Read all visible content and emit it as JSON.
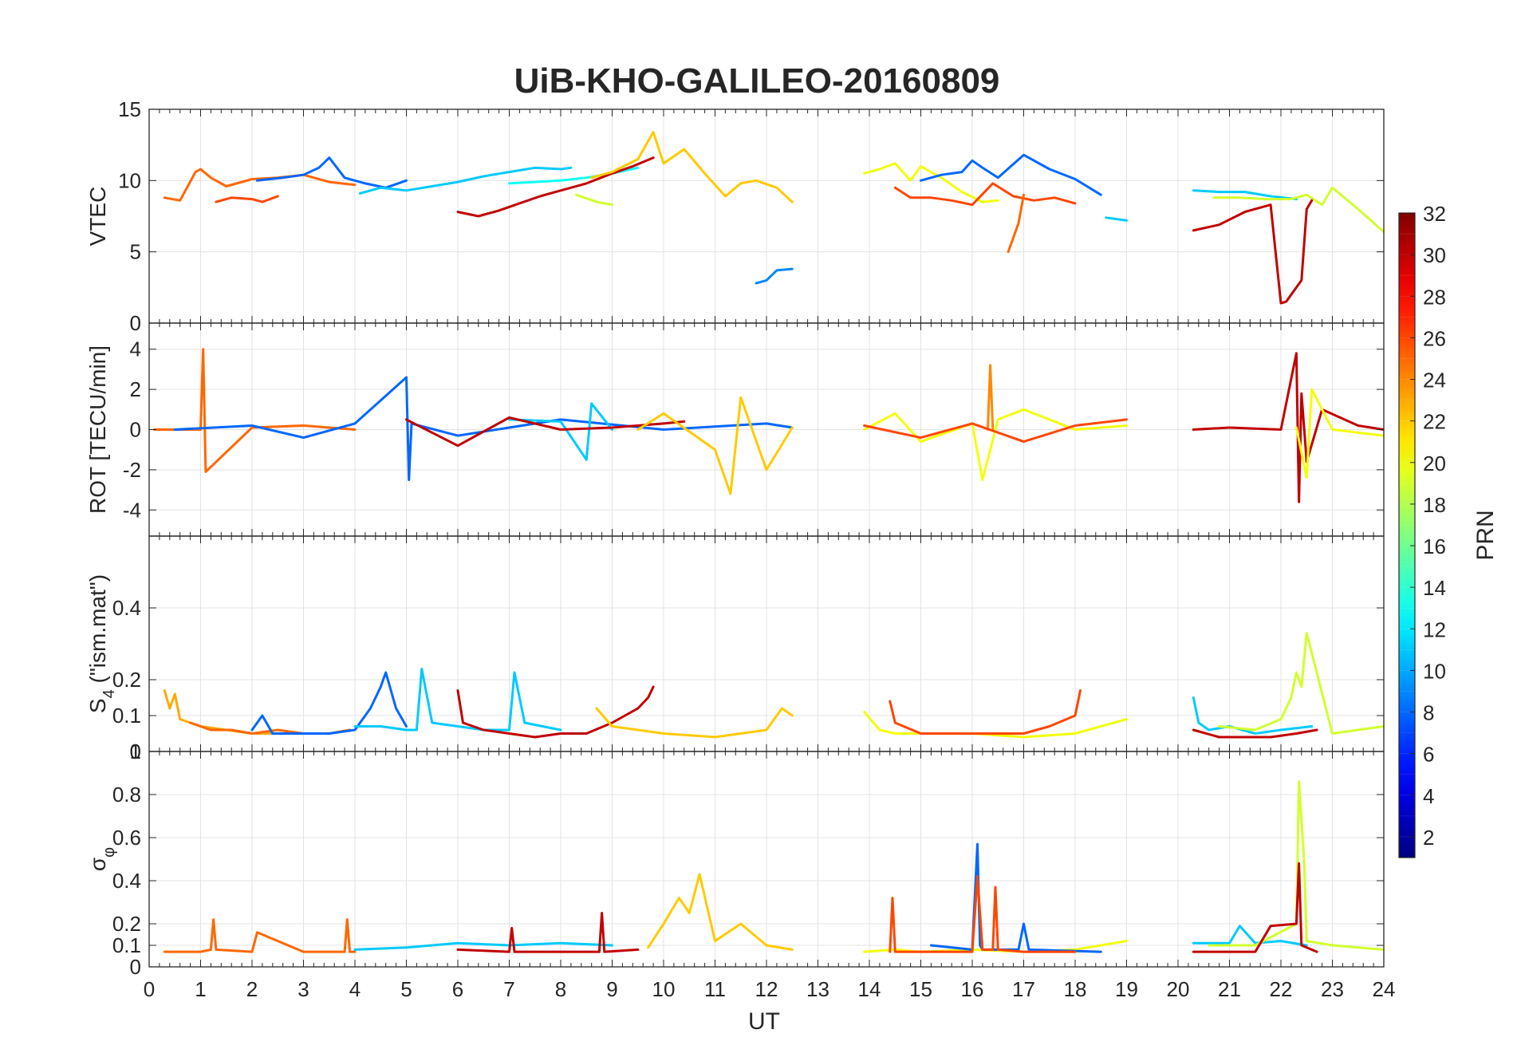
{
  "title": "UiB-KHO-GALILEO-20160809",
  "xlabel": "UT",
  "colorbar": {
    "label": "PRN",
    "ticks": [
      "2",
      "4",
      "6",
      "8",
      "10",
      "12",
      "14",
      "16",
      "18",
      "20",
      "22",
      "24",
      "26",
      "28",
      "30",
      "32"
    ],
    "range": [
      1,
      32
    ],
    "colormap": "jet"
  },
  "chart_data": [
    {
      "type": "line",
      "panel": "VTEC",
      "ylabel": "VTEC",
      "xlim": [
        0,
        24
      ],
      "ylim": [
        0,
        15
      ],
      "yticks": [
        "0",
        "5",
        "10",
        "15"
      ],
      "grid": true,
      "series": [
        {
          "prn": 25,
          "x": [
            0.3,
            0.6,
            0.9,
            1.0,
            1.2,
            1.5,
            2.0,
            2.5,
            3.0,
            3.5,
            4.0
          ],
          "y": [
            8.8,
            8.6,
            10.6,
            10.8,
            10.2,
            9.6,
            10.1,
            10.2,
            10.4,
            9.9,
            9.7
          ]
        },
        {
          "prn": 26,
          "x": [
            1.3,
            1.6,
            2.0,
            2.2,
            2.5
          ],
          "y": [
            8.5,
            8.8,
            8.7,
            8.5,
            8.9
          ]
        },
        {
          "prn": 8,
          "x": [
            2.1,
            2.6,
            3.0,
            3.3,
            3.5,
            3.8,
            4.2,
            4.6,
            5.0
          ],
          "y": [
            10.0,
            10.2,
            10.4,
            10.9,
            11.6,
            10.2,
            9.8,
            9.5,
            10.0
          ]
        },
        {
          "prn": 11,
          "x": [
            4.1,
            4.5,
            5.0,
            5.5,
            6.0,
            6.5,
            7.0,
            7.5,
            8.0,
            8.2
          ],
          "y": [
            9.1,
            9.5,
            9.3,
            9.6,
            9.9,
            10.3,
            10.6,
            10.9,
            10.8,
            10.9
          ]
        },
        {
          "prn": 13,
          "x": [
            7.0,
            7.5,
            8.0,
            8.5,
            9.0,
            9.5
          ],
          "y": [
            9.8,
            9.9,
            10.0,
            10.2,
            10.5,
            10.9
          ]
        },
        {
          "prn": 19,
          "x": [
            8.3,
            8.7,
            9.0
          ],
          "y": [
            9.0,
            8.5,
            8.3
          ]
        },
        {
          "prn": 30,
          "x": [
            6.0,
            6.4,
            6.8,
            7.2,
            7.6,
            8.0,
            8.5,
            9.0,
            9.4,
            9.8
          ],
          "y": [
            7.8,
            7.5,
            7.9,
            8.4,
            8.9,
            9.3,
            9.8,
            10.5,
            11.0,
            11.6
          ]
        },
        {
          "prn": 22,
          "x": [
            8.6,
            9.0,
            9.5,
            9.8,
            10.0,
            10.4,
            10.8,
            11.2,
            11.5,
            11.8,
            12.2,
            12.5
          ],
          "y": [
            10.2,
            10.6,
            11.5,
            13.4,
            11.2,
            12.2,
            10.5,
            8.9,
            9.8,
            10.0,
            9.5,
            8.5
          ]
        },
        {
          "prn": 9,
          "x": [
            11.8,
            12.0,
            12.2,
            12.5
          ],
          "y": [
            2.8,
            3.0,
            3.7,
            3.8
          ]
        },
        {
          "prn": 20,
          "x": [
            13.9,
            14.2,
            14.5,
            14.8,
            15.0,
            15.4,
            15.8,
            16.2,
            16.5
          ],
          "y": [
            10.5,
            10.8,
            11.2,
            10.0,
            11.0,
            10.2,
            9.2,
            8.5,
            8.6
          ]
        },
        {
          "prn": 8,
          "x": [
            15.0,
            15.4,
            15.8,
            16.0,
            16.2,
            16.5,
            17.0,
            17.5,
            18.0,
            18.5
          ],
          "y": [
            10.0,
            10.4,
            10.6,
            11.4,
            10.9,
            10.2,
            11.8,
            10.8,
            10.1,
            9.0
          ]
        },
        {
          "prn": 26,
          "x": [
            14.5,
            14.8,
            15.2,
            15.6,
            16.0,
            16.4,
            16.8,
            17.2,
            17.6,
            18.0
          ],
          "y": [
            9.5,
            8.8,
            8.8,
            8.6,
            8.3,
            9.8,
            8.9,
            8.6,
            8.8,
            8.4
          ]
        },
        {
          "prn": 25,
          "x": [
            16.7,
            16.9,
            17.0
          ],
          "y": [
            5.0,
            7.0,
            9.0
          ]
        },
        {
          "prn": 11,
          "x": [
            18.6,
            19.0
          ],
          "y": [
            7.4,
            7.2
          ]
        },
        {
          "prn": 11,
          "x": [
            20.3,
            20.8,
            21.3,
            21.8,
            22.3
          ],
          "y": [
            9.3,
            9.2,
            9.2,
            8.9,
            8.7
          ]
        },
        {
          "prn": 19,
          "x": [
            20.7,
            21.2,
            21.7,
            22.2,
            22.5,
            22.8,
            23.0,
            23.5,
            24.0
          ],
          "y": [
            8.8,
            8.8,
            8.7,
            8.7,
            9.0,
            8.3,
            9.5,
            8.0,
            6.4
          ]
        },
        {
          "prn": 30,
          "x": [
            20.3,
            20.8,
            21.3,
            21.8,
            22.0,
            22.1,
            22.4,
            22.5,
            22.6
          ],
          "y": [
            6.5,
            6.9,
            7.8,
            8.3,
            1.4,
            1.5,
            3.0,
            8.0,
            8.6
          ]
        }
      ]
    },
    {
      "type": "line",
      "panel": "ROT",
      "ylabel": "ROT [TECU/min]",
      "xlim": [
        0,
        24
      ],
      "ylim": [
        -5.3,
        5.3
      ],
      "yticks": [
        "-4",
        "-2",
        "0",
        "2",
        "4"
      ],
      "grid": true,
      "series": [
        {
          "prn": 25,
          "x": [
            0.1,
            1.0,
            1.05,
            1.1,
            2.0,
            3.0,
            4.0
          ],
          "y": [
            0,
            0,
            4.0,
            -2.1,
            0.1,
            0.2,
            0
          ]
        },
        {
          "prn": 8,
          "x": [
            0.5,
            2.0,
            3.0,
            4.0,
            5.0,
            5.05,
            5.1,
            6.0,
            8.0,
            10.0,
            12.0,
            12.5
          ],
          "y": [
            0,
            0.2,
            -0.4,
            0.3,
            2.6,
            -2.5,
            0.3,
            -0.3,
            0.5,
            0,
            0.3,
            0.1
          ]
        },
        {
          "prn": 11,
          "x": [
            7.0,
            8.0,
            8.5,
            8.6,
            9.0
          ],
          "y": [
            0.5,
            0.4,
            -1.5,
            1.3,
            0
          ]
        },
        {
          "prn": 30,
          "x": [
            5.0,
            6.0,
            7.0,
            8.0,
            9.0,
            10.0,
            10.4
          ],
          "y": [
            0.5,
            -0.8,
            0.6,
            0,
            0.1,
            0.3,
            0.4
          ]
        },
        {
          "prn": 22,
          "x": [
            9.5,
            10.0,
            11.0,
            11.3,
            11.5,
            12.0,
            12.5
          ],
          "y": [
            0,
            0.8,
            -1.0,
            -3.2,
            1.6,
            -2.0,
            0.1
          ]
        },
        {
          "prn": 20,
          "x": [
            13.9,
            14.5,
            15.0,
            16.0,
            16.2,
            16.5,
            17.0,
            18.0,
            19.0
          ],
          "y": [
            0,
            0.8,
            -0.6,
            0.3,
            -2.5,
            0.5,
            1.0,
            0,
            0.2
          ]
        },
        {
          "prn": 24,
          "x": [
            16.3,
            16.35,
            16.4
          ],
          "y": [
            0,
            3.2,
            0
          ]
        },
        {
          "prn": 26,
          "x": [
            13.9,
            15.0,
            16.0,
            17.0,
            18.0,
            19.0
          ],
          "y": [
            0.2,
            -0.4,
            0.3,
            -0.6,
            0.2,
            0.5
          ]
        },
        {
          "prn": 30,
          "x": [
            20.3,
            21.0,
            22.0,
            22.3,
            22.35,
            22.4,
            22.5,
            22.8,
            23.5,
            24.0
          ],
          "y": [
            0,
            0.1,
            0,
            3.8,
            -3.6,
            1.8,
            -1.6,
            1.0,
            0.2,
            0
          ]
        },
        {
          "prn": 20,
          "x": [
            22.3,
            22.5,
            22.6,
            23.0,
            24.0
          ],
          "y": [
            0.1,
            -2.4,
            2.0,
            0,
            -0.3
          ]
        }
      ]
    },
    {
      "type": "line",
      "panel": "S4",
      "ylabel": "S4 (\"ism.mat\")",
      "ylabel_main": "S",
      "ylabel_sub": "4",
      "ylabel_rest": " (\"ism.mat\")",
      "xlim": [
        0,
        24
      ],
      "ylim": [
        0,
        0.6
      ],
      "yticks": [
        "0",
        "0.1",
        "0.2",
        "0.4"
      ],
      "grid": true,
      "series": [
        {
          "prn": 23,
          "x": [
            0.3,
            0.4,
            0.5,
            0.6,
            0.8,
            1.0,
            1.5,
            2.0,
            2.5
          ],
          "y": [
            0.17,
            0.12,
            0.16,
            0.09,
            0.08,
            0.07,
            0.06,
            0.05,
            0.05
          ]
        },
        {
          "prn": 25,
          "x": [
            0.8,
            1.2,
            1.6,
            2.0,
            2.5,
            3.0,
            3.5,
            3.9
          ],
          "y": [
            0.08,
            0.06,
            0.06,
            0.05,
            0.06,
            0.05,
            0.05,
            0.06
          ]
        },
        {
          "prn": 8,
          "x": [
            2.0,
            2.2,
            2.4,
            3.0,
            3.5,
            4.0,
            4.3,
            4.5,
            4.6,
            4.8,
            5.0
          ],
          "y": [
            0.06,
            0.1,
            0.05,
            0.05,
            0.05,
            0.06,
            0.12,
            0.18,
            0.22,
            0.12,
            0.07
          ]
        },
        {
          "prn": 11,
          "x": [
            4.0,
            4.5,
            5.0,
            5.2,
            5.3,
            5.5,
            6.0,
            6.5,
            7.0,
            7.1,
            7.3,
            8.0
          ],
          "y": [
            0.07,
            0.07,
            0.06,
            0.06,
            0.23,
            0.08,
            0.07,
            0.06,
            0.06,
            0.22,
            0.08,
            0.06
          ]
        },
        {
          "prn": 30,
          "x": [
            6.0,
            6.1,
            6.5,
            7.0,
            7.5,
            8.0,
            8.5,
            9.0,
            9.5,
            9.7,
            9.8
          ],
          "y": [
            0.17,
            0.08,
            0.06,
            0.05,
            0.04,
            0.05,
            0.05,
            0.08,
            0.12,
            0.15,
            0.18
          ]
        },
        {
          "prn": 22,
          "x": [
            8.7,
            9.0,
            9.5,
            10.0,
            11.0,
            12.0,
            12.3,
            12.5
          ],
          "y": [
            0.12,
            0.07,
            0.06,
            0.05,
            0.04,
            0.06,
            0.12,
            0.1
          ]
        },
        {
          "prn": 20,
          "x": [
            13.9,
            14.2,
            14.5,
            15.0,
            16.0,
            17.0,
            18.0,
            19.0
          ],
          "y": [
            0.11,
            0.06,
            0.05,
            0.05,
            0.05,
            0.04,
            0.05,
            0.09
          ]
        },
        {
          "prn": 26,
          "x": [
            14.4,
            14.5,
            15.0,
            16.0,
            17.0,
            17.5,
            18.0,
            18.1
          ],
          "y": [
            0.14,
            0.08,
            0.05,
            0.05,
            0.05,
            0.07,
            0.1,
            0.17
          ]
        },
        {
          "prn": 11,
          "x": [
            20.3,
            20.4,
            20.6,
            21.0,
            21.5,
            22.0,
            22.6
          ],
          "y": [
            0.15,
            0.08,
            0.06,
            0.07,
            0.05,
            0.06,
            0.07
          ]
        },
        {
          "prn": 19,
          "x": [
            20.8,
            21.5,
            22.0,
            22.2,
            22.3,
            22.4,
            22.5,
            23.0,
            24.0
          ],
          "y": [
            0.07,
            0.06,
            0.09,
            0.15,
            0.22,
            0.18,
            0.33,
            0.05,
            0.07
          ]
        },
        {
          "prn": 30,
          "x": [
            20.3,
            20.8,
            21.3,
            21.8,
            22.3,
            22.7
          ],
          "y": [
            0.06,
            0.04,
            0.04,
            0.04,
            0.05,
            0.06
          ]
        }
      ]
    },
    {
      "type": "line",
      "panel": "sigma_phi",
      "ylabel": "σφ",
      "ylabel_main": "σ",
      "ylabel_sub": "φ",
      "xlim": [
        0,
        24
      ],
      "ylim": [
        0,
        1
      ],
      "yticks": [
        "0",
        "0.1",
        "0.2",
        "0.4",
        "0.6",
        "0.8",
        "1"
      ],
      "grid": true,
      "series": [
        {
          "prn": 25,
          "x": [
            0.3,
            1.0,
            1.2,
            1.25,
            1.3,
            2.0,
            2.1,
            3.0,
            3.8,
            3.85,
            3.9,
            4.0
          ],
          "y": [
            0.07,
            0.07,
            0.08,
            0.22,
            0.08,
            0.07,
            0.16,
            0.07,
            0.07,
            0.22,
            0.07,
            0.07
          ]
        },
        {
          "prn": 11,
          "x": [
            4.0,
            5.0,
            6.0,
            7.0,
            8.0,
            9.0
          ],
          "y": [
            0.08,
            0.09,
            0.11,
            0.1,
            0.11,
            0.1
          ]
        },
        {
          "prn": 30,
          "x": [
            6.0,
            7.0,
            7.05,
            7.1,
            8.0,
            8.75,
            8.8,
            8.85,
            9.5
          ],
          "y": [
            0.08,
            0.07,
            0.18,
            0.07,
            0.07,
            0.07,
            0.25,
            0.07,
            0.08
          ]
        },
        {
          "prn": 22,
          "x": [
            9.7,
            10.0,
            10.3,
            10.5,
            10.7,
            11.0,
            11.5,
            12.0,
            12.5
          ],
          "y": [
            0.09,
            0.2,
            0.32,
            0.25,
            0.43,
            0.12,
            0.2,
            0.1,
            0.08
          ]
        },
        {
          "prn": 20,
          "x": [
            13.9,
            14.5,
            15.0,
            16.0,
            17.0,
            18.0,
            19.0
          ],
          "y": [
            0.07,
            0.08,
            0.07,
            0.08,
            0.07,
            0.08,
            0.12
          ]
        },
        {
          "prn": 8,
          "x": [
            15.2,
            16.0,
            16.1,
            16.15,
            16.2,
            16.9,
            17.0,
            17.1,
            18.5
          ],
          "y": [
            0.1,
            0.08,
            0.57,
            0.1,
            0.08,
            0.08,
            0.2,
            0.08,
            0.07
          ]
        },
        {
          "prn": 26,
          "x": [
            14.4,
            14.45,
            14.5,
            15.0,
            16.0,
            16.1,
            16.2,
            16.4,
            16.45,
            16.5,
            17.0,
            18.0
          ],
          "y": [
            0.07,
            0.32,
            0.07,
            0.07,
            0.07,
            0.42,
            0.08,
            0.08,
            0.37,
            0.08,
            0.07,
            0.07
          ]
        },
        {
          "prn": 11,
          "x": [
            20.3,
            21.0,
            21.2,
            21.5,
            22.0,
            22.5
          ],
          "y": [
            0.11,
            0.11,
            0.19,
            0.11,
            0.12,
            0.1
          ]
        },
        {
          "prn": 19,
          "x": [
            20.6,
            21.5,
            22.3,
            22.35,
            22.45,
            22.5,
            23.0,
            24.0
          ],
          "y": [
            0.1,
            0.1,
            0.2,
            0.86,
            0.5,
            0.12,
            0.1,
            0.08
          ]
        },
        {
          "prn": 30,
          "x": [
            20.3,
            21.0,
            21.5,
            21.8,
            22.3,
            22.35,
            22.4,
            22.7
          ],
          "y": [
            0.07,
            0.07,
            0.07,
            0.19,
            0.2,
            0.48,
            0.1,
            0.07
          ]
        }
      ]
    }
  ]
}
